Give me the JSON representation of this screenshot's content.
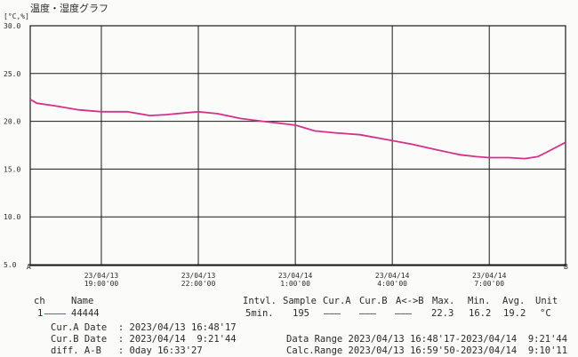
{
  "chart_data": {
    "type": "line",
    "title": "温度・湿度グラフ",
    "ylabel": "[°C,%]",
    "ylim": [
      5.0,
      30.0
    ],
    "y_ticks": [
      "30.0",
      "25.0",
      "20.0",
      "15.0",
      "10.0",
      "5.0"
    ],
    "y_tick_values": [
      30,
      25,
      20,
      15,
      10,
      5
    ],
    "x_range_hours": [
      0,
      16.56
    ],
    "x_tick_hours": [
      2.2,
      5.2,
      8.2,
      11.2,
      14.2
    ],
    "x_tick_labels": [
      [
        "23/04/13",
        "19:00'00"
      ],
      [
        "23/04/13",
        "22:00'00"
      ],
      [
        "23/04/14",
        "1:00'00"
      ],
      [
        "23/04/14",
        "4:00'00"
      ],
      [
        "23/04/14",
        "7:00'00"
      ]
    ],
    "cursor_labels": [
      "A",
      "B"
    ],
    "grid": true,
    "series": [
      {
        "color": "#d6308a",
        "x": [
          0,
          0.2,
          0.8,
          1.5,
          2.2,
          3.0,
          3.7,
          4.2,
          5.2,
          5.8,
          6.5,
          7.2,
          8.2,
          8.8,
          9.4,
          10.2,
          11.0,
          11.8,
          12.6,
          13.3,
          13.8,
          14.2,
          14.8,
          15.3,
          15.7,
          16.0,
          16.56
        ],
        "y": [
          22.3,
          21.9,
          21.6,
          21.2,
          21.0,
          21.0,
          20.6,
          20.7,
          21.0,
          20.8,
          20.3,
          20.0,
          19.6,
          19.0,
          18.8,
          18.6,
          18.1,
          17.6,
          17.0,
          16.5,
          16.3,
          16.2,
          16.2,
          16.1,
          16.3,
          16.8,
          17.8
        ]
      }
    ]
  },
  "table": {
    "headers": [
      "ch",
      "Name",
      "Intvl.",
      "Sample",
      "Cur.A",
      "Cur.B",
      "A<->B",
      "Max.",
      "Min.",
      "Avg.",
      "Unit"
    ],
    "row": {
      "ch": "1",
      "name": "44444",
      "intvl": "5min.",
      "sample": "195",
      "cur_a": "———",
      "cur_b": "———",
      "a_b": "———",
      "max": "22.3",
      "min": "16.2",
      "avg": "19.2",
      "unit": "°C"
    }
  },
  "info": {
    "cur_a_date": "Cur.A Date  : 2023/04/13 16:48'17",
    "cur_b_date": "Cur.B Date  : 2023/04/14  9:21'44",
    "diff": "diff. A-B   : 0day 16:33'27",
    "data_range": "Data Range 2023/04/13 16:48'17-2023/04/14  9:21'44",
    "calc_range": "Calc.Range 2023/04/13 16:59'50-2023/04/14  9:10'11"
  }
}
